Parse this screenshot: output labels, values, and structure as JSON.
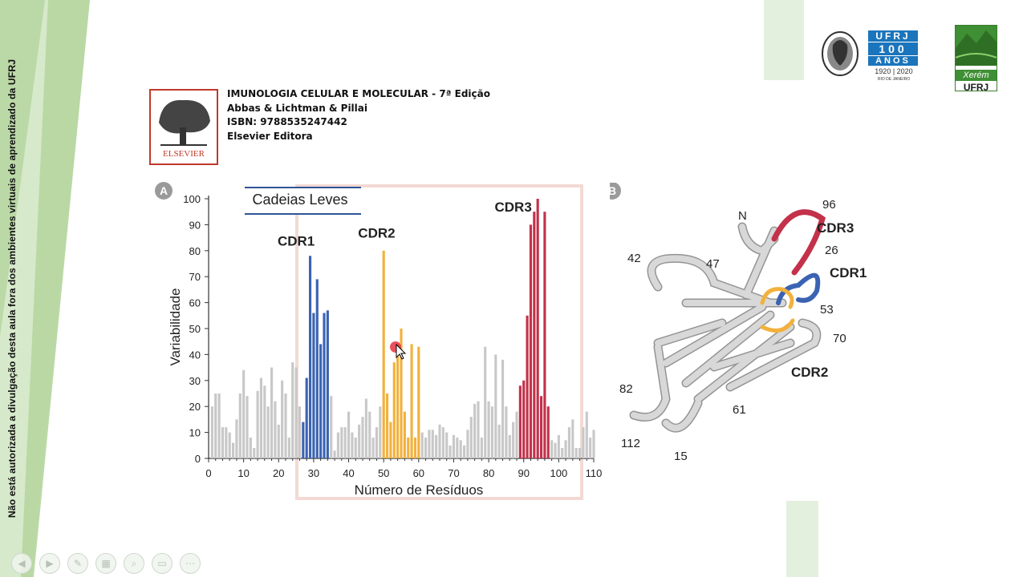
{
  "sidebar_notice": "Não está autorizada a divulgação desta aula fora dos ambientes virtuais de aprendizado da UFRJ",
  "book": {
    "cover_label": "ELSEVIER",
    "title": "IMUNOLOGIA CELULAR E MOLECULAR - 7ª Edição",
    "authors": "Abbas & Lichtman & Pillai",
    "isbn": "ISBN: 9788535247442",
    "publisher": "Elsevier Editora"
  },
  "logos": {
    "ufrj100_top": "UFRJ",
    "ufrj100_mid": "100",
    "ufrj100_anos": "ANOS",
    "ufrj100_years": "1920 | 2020",
    "ufrj100_city": "RIO DE JANEIRO",
    "xerem_name": "Xerém",
    "xerem_ufrj": "UFRJ"
  },
  "figure": {
    "panel_a_label": "A",
    "panel_b_label": "B",
    "panel_b_labels": {
      "n": "N",
      "l96": "96",
      "cdr3": "CDR3",
      "l26": "26",
      "cdr1": "CDR1",
      "l42": "42",
      "l47": "47",
      "l53": "53",
      "l70": "70",
      "cdr2": "CDR2",
      "l82": "82",
      "l61": "61",
      "l112": "112",
      "l15": "15"
    }
  },
  "chart_data": {
    "type": "bar",
    "title": "Cadeias Leves",
    "xlabel": "Número de Resíduos",
    "ylabel": "Variabilidade",
    "xlim": [
      0,
      110
    ],
    "ylim": [
      0,
      100
    ],
    "xticks": [
      0,
      10,
      20,
      30,
      40,
      50,
      60,
      70,
      80,
      90,
      100,
      110
    ],
    "yticks": [
      0,
      10,
      20,
      30,
      40,
      50,
      60,
      70,
      80,
      90,
      100
    ],
    "annotations": [
      "CDR1",
      "CDR2",
      "CDR3"
    ],
    "colors": {
      "framework": "#c8c8c8",
      "cdr1": "#3b63b3",
      "cdr2": "#f2b13d",
      "cdr3": "#c3314a"
    },
    "series": [
      {
        "group": "framework",
        "x": [
          1,
          2,
          3,
          4,
          5,
          6,
          7,
          8,
          9,
          10,
          11,
          12,
          13,
          14,
          15,
          16,
          17,
          18,
          19,
          20,
          21,
          22,
          23,
          24,
          25,
          26,
          35,
          36,
          37,
          38,
          39,
          40,
          41,
          42,
          43,
          44,
          45,
          46,
          47,
          48,
          49,
          61,
          62,
          63,
          64,
          65,
          66,
          67,
          68,
          69,
          70,
          71,
          72,
          73,
          74,
          75,
          76,
          77,
          78,
          79,
          80,
          81,
          82,
          83,
          84,
          85,
          86,
          87,
          88,
          98,
          99,
          100,
          101,
          102,
          103,
          104,
          105,
          106,
          107,
          108,
          109,
          110
        ],
        "values": [
          20,
          25,
          25,
          12,
          12,
          10,
          6,
          15,
          25,
          34,
          24,
          8,
          4,
          26,
          31,
          28,
          20,
          35,
          22,
          13,
          30,
          25,
          8,
          37,
          35,
          20,
          24,
          3,
          10,
          12,
          12,
          18,
          10,
          8,
          13,
          16,
          23,
          18,
          8,
          12,
          20,
          10,
          8,
          11,
          11,
          9,
          13,
          12,
          10,
          5,
          9,
          8,
          7,
          5,
          11,
          16,
          21,
          22,
          8,
          43,
          22,
          20,
          40,
          13,
          38,
          20,
          9,
          14,
          18,
          7,
          6,
          9,
          4,
          7,
          12,
          15,
          4,
          4,
          12,
          18,
          8,
          11
        ]
      },
      {
        "group": "CDR1",
        "x": [
          27,
          28,
          29,
          30,
          31,
          32,
          33,
          34
        ],
        "values": [
          14,
          31,
          78,
          56,
          69,
          44,
          56,
          57
        ]
      },
      {
        "group": "CDR2",
        "x": [
          50,
          51,
          52,
          53,
          54,
          55,
          56,
          57,
          58,
          59,
          60
        ],
        "values": [
          80,
          25,
          14,
          37,
          44,
          50,
          18,
          8,
          44,
          8,
          43
        ]
      },
      {
        "group": "CDR3",
        "x": [
          89,
          90,
          91,
          92,
          93,
          94,
          95,
          96,
          97
        ],
        "values": [
          28,
          30,
          55,
          90,
          95,
          100,
          24,
          95,
          20
        ]
      }
    ]
  }
}
